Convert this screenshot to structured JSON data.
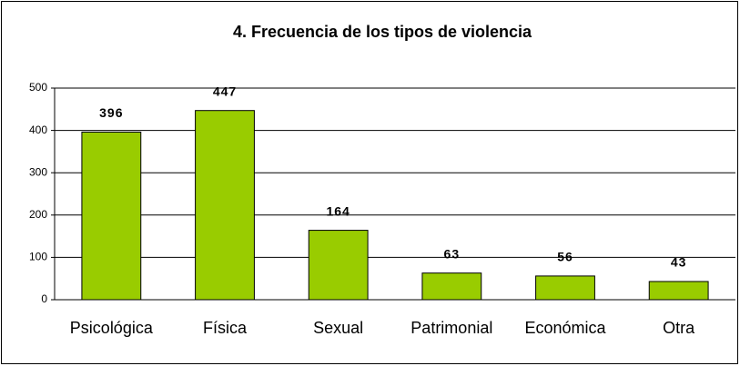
{
  "chart_data": {
    "type": "bar",
    "title": "4. Frecuencia de los tipos de violencia",
    "categories": [
      "Psicológica",
      "Física",
      "Sexual",
      "Patrimonial",
      "Económica",
      "Otra"
    ],
    "values": [
      396,
      447,
      164,
      63,
      56,
      43
    ],
    "color": "#99cc00",
    "ylim": [
      0,
      500
    ],
    "yticks": [
      0,
      100,
      200,
      300,
      400,
      500
    ],
    "grid": true
  }
}
